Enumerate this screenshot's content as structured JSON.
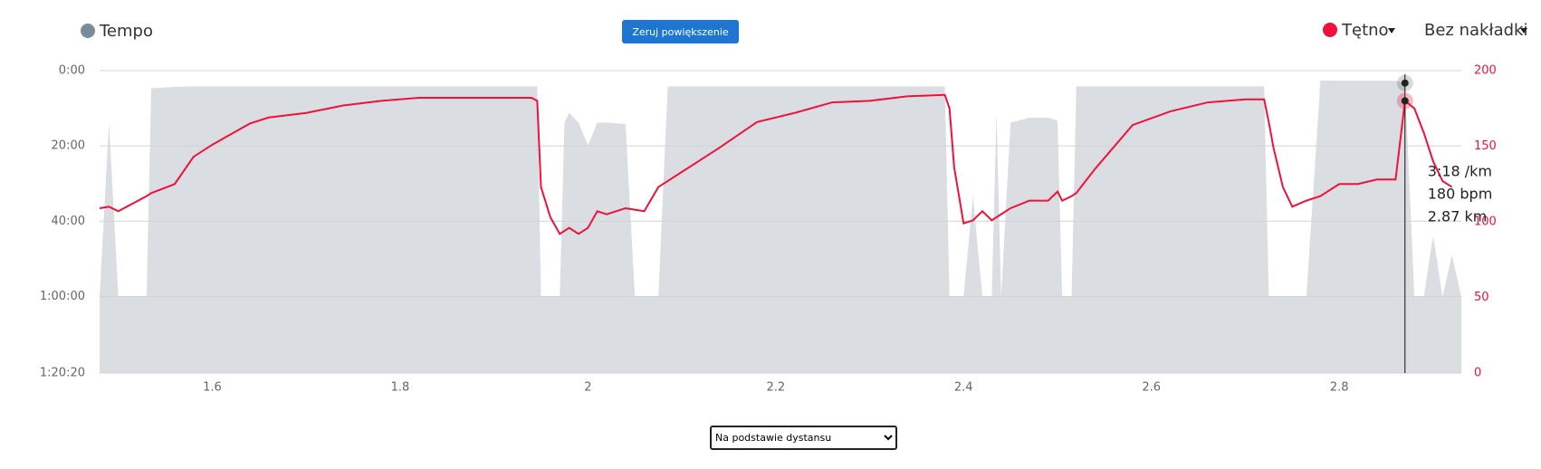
{
  "chart_data": {
    "type": "pace-hr",
    "x": [
      1.48,
      1.49,
      1.5,
      1.53,
      1.535,
      1.56,
      1.58,
      1.6,
      1.62,
      1.64,
      1.66,
      1.7,
      1.74,
      1.78,
      1.82,
      1.86,
      1.9,
      1.94,
      1.946,
      1.95,
      1.96,
      1.97,
      1.975,
      1.98,
      1.99,
      2.0,
      2.01,
      2.02,
      2.04,
      2.05,
      2.06,
      2.075,
      2.085,
      2.1,
      2.14,
      2.18,
      2.22,
      2.26,
      2.3,
      2.34,
      2.38,
      2.385,
      2.39,
      2.4,
      2.41,
      2.42,
      2.43,
      2.435,
      2.44,
      2.45,
      2.47,
      2.49,
      2.5,
      2.505,
      2.515,
      2.52,
      2.54,
      2.58,
      2.62,
      2.66,
      2.7,
      2.72,
      2.725,
      2.73,
      2.74,
      2.75,
      2.765,
      2.78,
      2.8,
      2.82,
      2.84,
      2.86,
      2.87,
      2.88,
      2.89,
      2.9,
      2.91,
      2.92,
      2.93
    ],
    "series": [
      {
        "name": "Tempo",
        "color": "#dadee2",
        "legend_color": "#7a8b9c",
        "values": [
          3600,
          830,
          3600,
          3600,
          282,
          260,
          250,
          250,
          250,
          250,
          250,
          250,
          250,
          250,
          250,
          250,
          250,
          250,
          250,
          3600,
          3600,
          3600,
          830,
          673,
          830,
          1190,
          830,
          830,
          850,
          3600,
          3600,
          3600,
          250,
          250,
          250,
          250,
          250,
          250,
          250,
          250,
          250,
          3600,
          3600,
          3600,
          2003,
          3600,
          3600,
          673,
          3600,
          830,
          751,
          751,
          800,
          3600,
          3600,
          250,
          250,
          250,
          250,
          250,
          250,
          250,
          3600,
          3600,
          3600,
          3600,
          3600,
          157,
          160,
          160,
          160,
          160,
          198,
          3600,
          3600,
          2630,
          3600,
          2940,
          3600
        ]
      },
      {
        "name": "Tętno",
        "color": "#f0113a",
        "axis": "y2",
        "values": [
          109,
          110,
          107,
          117,
          119,
          125,
          143,
          151,
          158,
          165,
          169,
          172,
          177,
          180,
          182,
          182,
          182,
          182,
          180,
          123,
          103,
          92,
          94,
          96,
          92,
          96,
          107,
          105,
          109,
          108,
          107,
          123,
          127,
          133,
          149,
          166,
          172,
          179,
          180,
          183,
          184,
          175,
          136,
          99,
          101,
          107,
          101,
          103,
          105,
          109,
          114,
          114,
          120,
          114,
          117,
          119,
          135,
          164,
          173,
          179,
          181,
          181,
          166,
          149,
          123,
          110,
          114,
          117,
          125,
          125,
          128,
          128,
          180,
          175,
          159,
          140,
          127,
          123,
          null
        ]
      }
    ],
    "xlim": [
      1.48,
      2.93
    ],
    "xticks": [
      1.6,
      1.8,
      2,
      2.2,
      2.4,
      2.6,
      2.8
    ],
    "ylim": [
      0,
      4820
    ],
    "y_inverted": true,
    "yticks": [
      {
        "value": 0,
        "label": "0:00"
      },
      {
        "value": 1200,
        "label": "20:00"
      },
      {
        "value": 2400,
        "label": "40:00"
      },
      {
        "value": 3600,
        "label": "1:00:00"
      },
      {
        "value": 4820,
        "label": "1:20:20"
      }
    ],
    "y2lim": [
      0,
      200
    ],
    "y2ticks": [
      0,
      50,
      100,
      150,
      200
    ],
    "grid": true,
    "tooltip": {
      "x": 2.87,
      "lines": [
        "3:18 /km",
        "180 bpm",
        "2.87 km"
      ]
    }
  },
  "ui": {
    "reset_button": "Zeruj powiększenie",
    "overlay": "Bez nakładki",
    "mode_select": "Na podstawie dystansu"
  }
}
